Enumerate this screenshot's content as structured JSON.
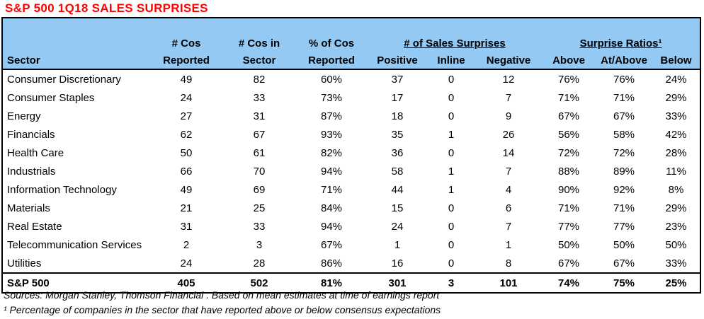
{
  "title": "S&P 500 1Q18 SALES SURPRISES",
  "colors": {
    "title_red": "#ff0000",
    "header_blue": "#94c9f3",
    "border_black": "#000000"
  },
  "table": {
    "groups": [
      {
        "label": "# of Sales Surprises"
      },
      {
        "label": "Surprise Ratios¹"
      }
    ],
    "columns": [
      {
        "line1": "",
        "line2": "Sector"
      },
      {
        "line1": "# Cos",
        "line2": "Reported"
      },
      {
        "line1": "# Cos in",
        "line2": "Sector"
      },
      {
        "line1": "% of Cos",
        "line2": "Reported"
      },
      {
        "line1": "",
        "line2": "Positive"
      },
      {
        "line1": "",
        "line2": "Inline"
      },
      {
        "line1": "",
        "line2": "Negative"
      },
      {
        "line1": "",
        "line2": "Above"
      },
      {
        "line1": "",
        "line2": "At/Above"
      },
      {
        "line1": "",
        "line2": "Below"
      }
    ],
    "rows": [
      [
        "Consumer Discretionary",
        "49",
        "82",
        "60%",
        "37",
        "0",
        "12",
        "76%",
        "76%",
        "24%"
      ],
      [
        "Consumer Staples",
        "24",
        "33",
        "73%",
        "17",
        "0",
        "7",
        "71%",
        "71%",
        "29%"
      ],
      [
        "Energy",
        "27",
        "31",
        "87%",
        "18",
        "0",
        "9",
        "67%",
        "67%",
        "33%"
      ],
      [
        "Financials",
        "62",
        "67",
        "93%",
        "35",
        "1",
        "26",
        "56%",
        "58%",
        "42%"
      ],
      [
        "Health Care",
        "50",
        "61",
        "82%",
        "36",
        "0",
        "14",
        "72%",
        "72%",
        "28%"
      ],
      [
        "Industrials",
        "66",
        "70",
        "94%",
        "58",
        "1",
        "7",
        "88%",
        "89%",
        "11%"
      ],
      [
        "Information Technology",
        "49",
        "69",
        "71%",
        "44",
        "1",
        "4",
        "90%",
        "92%",
        "8%"
      ],
      [
        "Materials",
        "21",
        "25",
        "84%",
        "15",
        "0",
        "6",
        "71%",
        "71%",
        "29%"
      ],
      [
        "Real Estate",
        "31",
        "33",
        "94%",
        "24",
        "0",
        "7",
        "77%",
        "77%",
        "23%"
      ],
      [
        "Telecommunication Services",
        "2",
        "3",
        "67%",
        "1",
        "0",
        "1",
        "50%",
        "50%",
        "50%"
      ],
      [
        "Utilities",
        "24",
        "28",
        "86%",
        "16",
        "0",
        "8",
        "67%",
        "67%",
        "33%"
      ]
    ],
    "total_row": [
      "S&P 500",
      "405",
      "502",
      "81%",
      "301",
      "3",
      "101",
      "74%",
      "75%",
      "25%"
    ]
  },
  "footnotes": [
    "Sources: Morgan Stanley, Thomson Financial . Based on mean estimates at time of earnings report",
    "¹ Percentage of companies in the sector that have reported above or below consensus expectations"
  ]
}
